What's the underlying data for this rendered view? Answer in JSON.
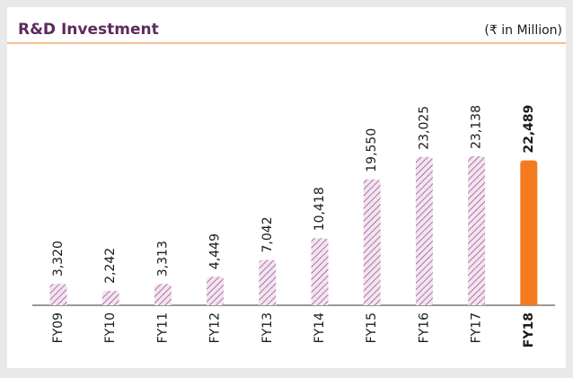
{
  "chart_data": {
    "type": "bar",
    "title": "R&D Investment",
    "subtitle": "(₹ in Million)",
    "categories": [
      "FY09",
      "FY10",
      "FY11",
      "FY12",
      "FY13",
      "FY14",
      "FY15",
      "FY16",
      "FY17",
      "FY18"
    ],
    "values": [
      3320,
      2242,
      3313,
      4449,
      7042,
      10418,
      19550,
      23025,
      23138,
      22489
    ],
    "value_labels": [
      "3,320",
      "2,242",
      "3,313",
      "4,449",
      "7,042",
      "10,418",
      "19,550",
      "23,025",
      "23,138",
      "22,489"
    ],
    "color": "#9b5b95",
    "highlight": "FY18",
    "highlight_color": "#f47b20"
  }
}
